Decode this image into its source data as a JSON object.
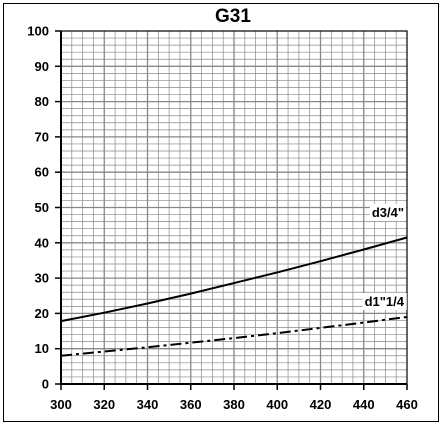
{
  "chart_data": {
    "type": "line",
    "title": "G31",
    "xlabel": "",
    "ylabel": "",
    "xlim": [
      300,
      460
    ],
    "ylim": [
      0,
      100
    ],
    "x_ticks": [
      "300",
      "320",
      "340",
      "360",
      "380",
      "400",
      "420",
      "440",
      "460"
    ],
    "y_ticks": [
      "0",
      "10",
      "20",
      "30",
      "40",
      "50",
      "60",
      "70",
      "80",
      "90",
      "100"
    ],
    "grid": true,
    "series": [
      {
        "name": "d3/4\"",
        "style": "solid",
        "x": [
          300,
          320,
          340,
          360,
          380,
          400,
          420,
          440,
          460
        ],
        "y": [
          17.8,
          20.2,
          22.8,
          25.6,
          28.6,
          31.6,
          34.8,
          38.1,
          41.5
        ]
      },
      {
        "name": "d1\"1/4",
        "style": "dash-dot",
        "x": [
          300,
          320,
          340,
          360,
          380,
          400,
          420,
          440,
          460
        ],
        "y": [
          8.0,
          9.2,
          10.4,
          11.7,
          13.0,
          14.4,
          15.9,
          17.4,
          19.0
        ]
      }
    ],
    "colors": {
      "line": "#000000",
      "grid": "#888888",
      "frame": "#000000"
    }
  }
}
